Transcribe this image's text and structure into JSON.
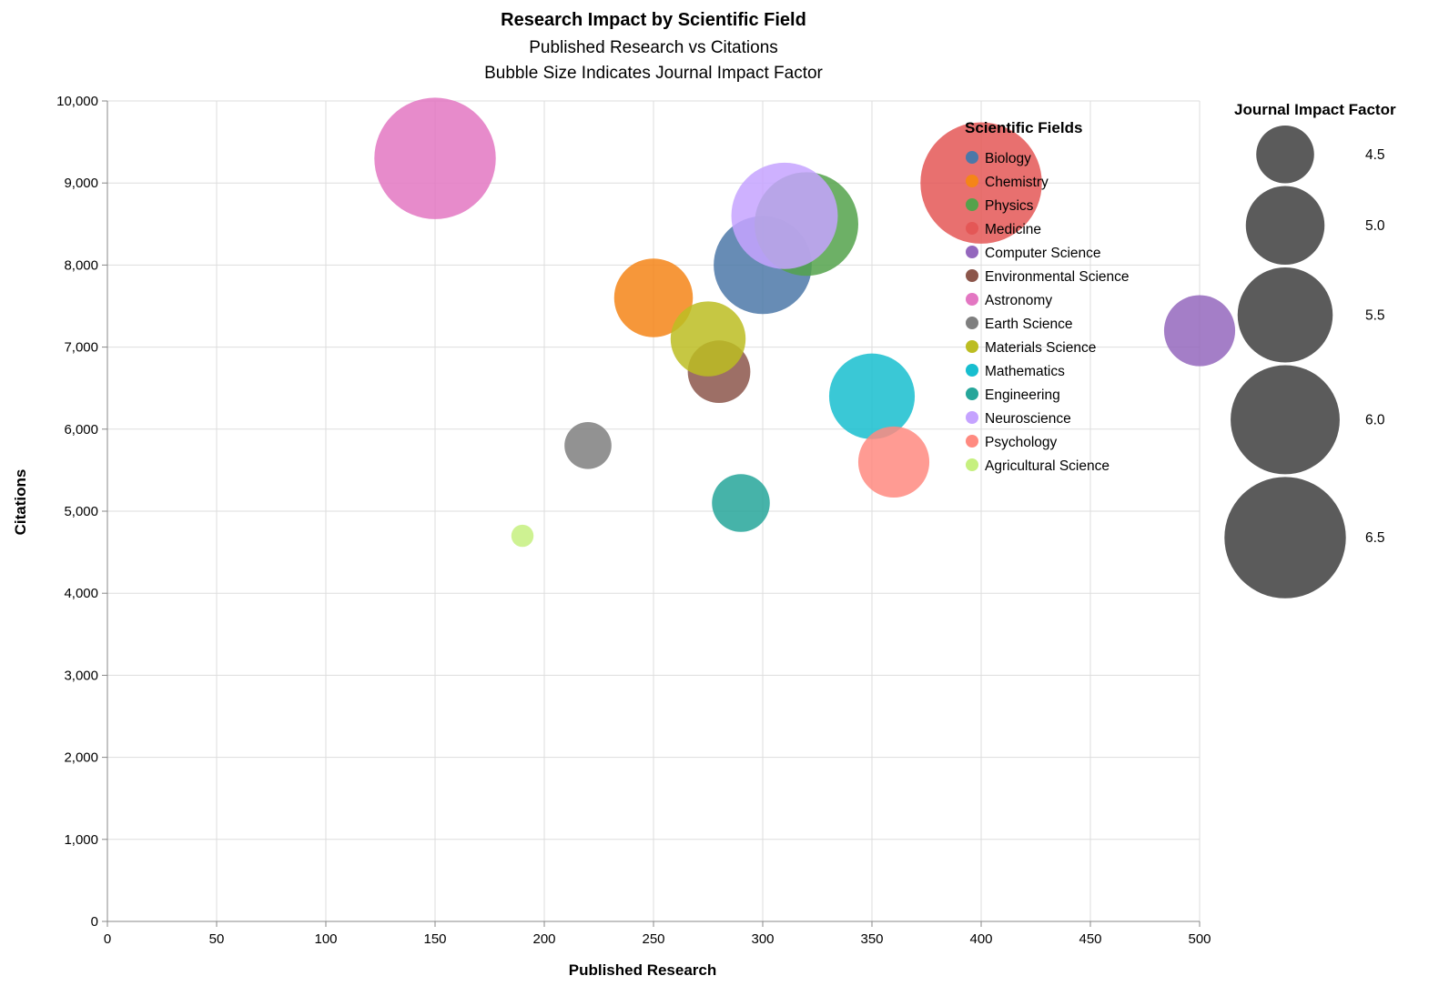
{
  "chart_data": {
    "type": "scatter",
    "title": "Research Impact by Scientific Field",
    "subtitle": [
      "Published Research vs Citations",
      "Bubble Size Indicates Journal Impact Factor"
    ],
    "xlabel": "Published Research",
    "ylabel": "Citations",
    "xlim": [
      0,
      500
    ],
    "ylim": [
      0,
      10000
    ],
    "x_ticks": [
      0,
      50,
      100,
      150,
      200,
      250,
      300,
      350,
      400,
      450,
      500
    ],
    "y_ticks": [
      0,
      1000,
      2000,
      3000,
      4000,
      5000,
      6000,
      7000,
      8000,
      9000,
      10000
    ],
    "x_tick_labels": [
      "0",
      "50",
      "100",
      "150",
      "200",
      "250",
      "300",
      "350",
      "400",
      "450",
      "500"
    ],
    "y_tick_labels": [
      "0",
      "1,000",
      "2,000",
      "3,000",
      "4,000",
      "5,000",
      "6,000",
      "7,000",
      "8,000",
      "9,000",
      "10,000"
    ],
    "grid": true,
    "color_legend": {
      "title": "Scientific Fields",
      "placement": "top-right"
    },
    "size_legend": {
      "title": "Journal Impact Factor",
      "placement": "right",
      "values": [
        4.5,
        5.0,
        5.5,
        6.0,
        6.5
      ],
      "labels": [
        "4.5",
        "5.0",
        "5.5",
        "6.0",
        "6.5"
      ]
    },
    "series": [
      {
        "name": "Biology",
        "color": "#4c78a8",
        "x": 300,
        "y": 8000,
        "impact_factor": 5.6
      },
      {
        "name": "Chemistry",
        "color": "#f58518",
        "x": 250,
        "y": 7600,
        "impact_factor": 5.0
      },
      {
        "name": "Physics",
        "color": "#54a24b",
        "x": 320,
        "y": 8500,
        "impact_factor": 5.8
      },
      {
        "name": "Medicine",
        "color": "#e45756",
        "x": 400,
        "y": 9000,
        "impact_factor": 6.5
      },
      {
        "name": "Computer Science",
        "color": "#9467bd",
        "x": 500,
        "y": 7200,
        "impact_factor": 4.8
      },
      {
        "name": "Environmental Science",
        "color": "#8c564b",
        "x": 280,
        "y": 6700,
        "impact_factor": 4.6
      },
      {
        "name": "Astronomy",
        "color": "#e377c2",
        "x": 150,
        "y": 9300,
        "impact_factor": 6.5
      },
      {
        "name": "Earth Science",
        "color": "#7f7f7f",
        "x": 220,
        "y": 5800,
        "impact_factor": 4.3
      },
      {
        "name": "Materials Science",
        "color": "#bcbd22",
        "x": 275,
        "y": 7100,
        "impact_factor": 4.9
      },
      {
        "name": "Mathematics",
        "color": "#17becf",
        "x": 350,
        "y": 6400,
        "impact_factor": 5.2
      },
      {
        "name": "Engineering",
        "color": "#26a69a",
        "x": 290,
        "y": 5100,
        "impact_factor": 4.5
      },
      {
        "name": "Neuroscience",
        "color": "#c5a3ff",
        "x": 310,
        "y": 8600,
        "impact_factor": 5.9
      },
      {
        "name": "Psychology",
        "color": "#ff8a80",
        "x": 360,
        "y": 5600,
        "impact_factor": 4.8
      },
      {
        "name": "Agricultural Science",
        "color": "#c6f07f",
        "x": 190,
        "y": 4700,
        "impact_factor": 4.0
      }
    ]
  }
}
